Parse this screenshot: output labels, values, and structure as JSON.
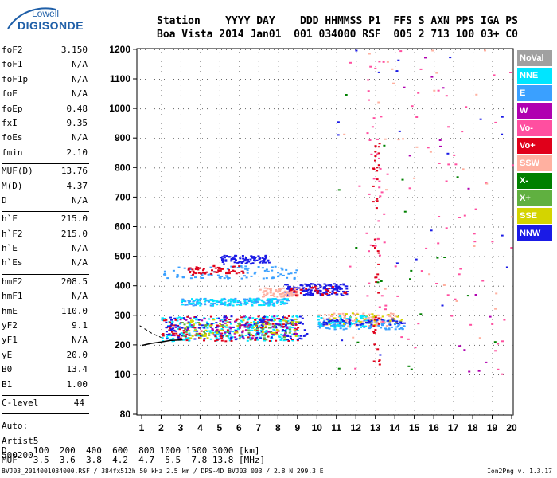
{
  "logo": {
    "top": "Lowell",
    "bottom": "DIGISONDE"
  },
  "header": {
    "line1": "Station    YYYY DAY    DDD HHMMSS P1  FFS S AXN PPS IGA PS",
    "line2": "Boa Vista 2014 Jan01  001 034000 RSF  005 2 713 100 03+ C0"
  },
  "params_group1": [
    {
      "k": "foF2",
      "v": "3.150"
    },
    {
      "k": "foF1",
      "v": "N/A"
    },
    {
      "k": "foF1p",
      "v": "N/A"
    },
    {
      "k": "foE",
      "v": "N/A"
    },
    {
      "k": "foEp",
      "v": "0.48"
    },
    {
      "k": "fxI",
      "v": "9.35"
    },
    {
      "k": "foEs",
      "v": "N/A"
    },
    {
      "k": "fmin",
      "v": "2.10"
    }
  ],
  "params_group2": [
    {
      "k": "MUF(D)",
      "v": "13.76"
    },
    {
      "k": "M(D)",
      "v": "4.37"
    },
    {
      "k": "D",
      "v": "N/A"
    }
  ],
  "params_group3": [
    {
      "k": "h`F",
      "v": "215.0"
    },
    {
      "k": "h`F2",
      "v": "215.0"
    },
    {
      "k": "h`E",
      "v": "N/A"
    },
    {
      "k": "h`Es",
      "v": "N/A"
    }
  ],
  "params_group4": [
    {
      "k": "hmF2",
      "v": "208.5"
    },
    {
      "k": "hmF1",
      "v": "N/A"
    },
    {
      "k": "hmE",
      "v": "110.0"
    },
    {
      "k": "yF2",
      "v": "9.1"
    },
    {
      "k": "yF1",
      "v": "N/A"
    },
    {
      "k": "yE",
      "v": "20.0"
    },
    {
      "k": "B0",
      "v": "13.4"
    },
    {
      "k": "B1",
      "v": "1.00"
    }
  ],
  "clevel": {
    "k": "C-level",
    "v": "44"
  },
  "auto_lines": [
    "Auto:",
    "Artist5",
    "500200"
  ],
  "table": {
    "row1": "D     100  200  400  600  800 1000 1500 3000 [km]",
    "row2": "MUF   3.5  3.6  3.8  4.2  4.7  5.5  7.8 13.8 [MHz]"
  },
  "footer": "BVJ03_2014001034000.RSF / 384fx512h 50 kHz 2.5 km / DPS-4D BVJ03 003 / 2.8 N 299.3 E",
  "footer_right": "Ion2Png v. 1.3.17",
  "legend": [
    {
      "label": "NoVal",
      "color": "#a0a0a0"
    },
    {
      "label": "NNE",
      "color": "#00e5ff"
    },
    {
      "label": "E",
      "color": "#3aa0ff"
    },
    {
      "label": "W",
      "color": "#b000b0"
    },
    {
      "label": "Vo-",
      "color": "#ff4fa0"
    },
    {
      "label": "Vo+",
      "color": "#e0001a"
    },
    {
      "label": "SSW",
      "color": "#ffb0a0"
    },
    {
      "label": "X-",
      "color": "#008000"
    },
    {
      "label": "X+",
      "color": "#60b040"
    },
    {
      "label": "SSE",
      "color": "#d4d400"
    },
    {
      "label": "NNW",
      "color": "#1a1ae6"
    }
  ],
  "chart_data": {
    "type": "scatter",
    "title": "",
    "xlabel": "",
    "ylabel": "",
    "xlim": [
      0.9,
      20.1
    ],
    "ylim": [
      80,
      1210
    ],
    "x_ticks": [
      1,
      2,
      3,
      4,
      5,
      6,
      7,
      8,
      9,
      10,
      11,
      12,
      13,
      14,
      15,
      16,
      17,
      18,
      19,
      20
    ],
    "y_ticks": [
      80,
      100,
      200,
      300,
      400,
      500,
      600,
      700,
      800,
      900,
      1000,
      1100,
      1200
    ],
    "grid": true,
    "legend_placement": "right",
    "trace": [
      {
        "x": 1.0,
        "y": 198
      },
      {
        "x": 1.5,
        "y": 205
      },
      {
        "x": 2.0,
        "y": 210
      },
      {
        "x": 2.5,
        "y": 215
      },
      {
        "x": 3.1,
        "y": 217
      }
    ],
    "trace_upper": [
      {
        "x": 0.9,
        "y": 265
      },
      {
        "x": 1.5,
        "y": 240
      },
      {
        "x": 2.0,
        "y": 225
      }
    ],
    "clusters": [
      {
        "series": "NNE",
        "x": [
          2.0,
          9.0
        ],
        "y": [
          215,
          300
        ],
        "n": 260
      },
      {
        "series": "Vo+",
        "x": [
          2.0,
          9.0
        ],
        "y": [
          215,
          300
        ],
        "n": 140
      },
      {
        "series": "NNW",
        "x": [
          2.2,
          9.5
        ],
        "y": [
          220,
          300
        ],
        "n": 160
      },
      {
        "series": "W",
        "x": [
          2.5,
          9.0
        ],
        "y": [
          225,
          300
        ],
        "n": 60
      },
      {
        "series": "X+",
        "x": [
          3.0,
          9.0
        ],
        "y": [
          220,
          280
        ],
        "n": 50
      },
      {
        "series": "SSE",
        "x": [
          3.0,
          9.0
        ],
        "y": [
          225,
          290
        ],
        "n": 60
      },
      {
        "series": "E",
        "x": [
          3.0,
          8.5
        ],
        "y": [
          335,
          360
        ],
        "n": 140
      },
      {
        "series": "NNE",
        "x": [
          3.0,
          8.5
        ],
        "y": [
          335,
          360
        ],
        "n": 90
      },
      {
        "series": "E",
        "x": [
          2.0,
          9.0
        ],
        "y": [
          425,
          470
        ],
        "n": 90
      },
      {
        "series": "Vo+",
        "x": [
          3.3,
          6.2
        ],
        "y": [
          440,
          470
        ],
        "n": 60
      },
      {
        "series": "NNW",
        "x": [
          5.0,
          7.5
        ],
        "y": [
          475,
          505
        ],
        "n": 80
      },
      {
        "series": "NNW",
        "x": [
          8.3,
          11.5
        ],
        "y": [
          370,
          410
        ],
        "n": 150
      },
      {
        "series": "SSW",
        "x": [
          7.0,
          9.0
        ],
        "y": [
          365,
          395
        ],
        "n": 70
      },
      {
        "series": "Vo+",
        "x": [
          8.5,
          11.5
        ],
        "y": [
          370,
          400
        ],
        "n": 30
      },
      {
        "series": "SSW",
        "x": [
          10.0,
          14.0
        ],
        "y": [
          265,
          310
        ],
        "n": 120
      },
      {
        "series": "E",
        "x": [
          10.0,
          14.5
        ],
        "y": [
          255,
          285
        ],
        "n": 90
      },
      {
        "series": "SSE",
        "x": [
          10.5,
          14.5
        ],
        "y": [
          270,
          310
        ],
        "n": 40
      },
      {
        "series": "NNE",
        "x": [
          10.0,
          12.5
        ],
        "y": [
          260,
          300
        ],
        "n": 50
      },
      {
        "series": "NNW",
        "x": [
          10.0,
          14.5
        ],
        "y": [
          270,
          290
        ],
        "n": 40
      },
      {
        "series": "Vo+",
        "x": [
          12.8,
          13.2
        ],
        "y": [
          100,
          900
        ],
        "n": 45
      },
      {
        "series": "Vo-",
        "x": [
          12.5,
          13.5
        ],
        "y": [
          300,
          1200
        ],
        "n": 30
      },
      {
        "series": "Vo-",
        "x": [
          11.5,
          20.0
        ],
        "y": [
          100,
          1200
        ],
        "n": 70
      },
      {
        "series": "X-",
        "x": [
          11.0,
          20.0
        ],
        "y": [
          100,
          1200
        ],
        "n": 20
      },
      {
        "series": "NNW",
        "x": [
          11.0,
          20.0
        ],
        "y": [
          100,
          1200
        ],
        "n": 20
      },
      {
        "series": "SSW",
        "x": [
          11.0,
          20.0
        ],
        "y": [
          100,
          1200
        ],
        "n": 30
      },
      {
        "series": "W",
        "x": [
          14.0,
          20.0
        ],
        "y": [
          100,
          1200
        ],
        "n": 15
      }
    ]
  }
}
